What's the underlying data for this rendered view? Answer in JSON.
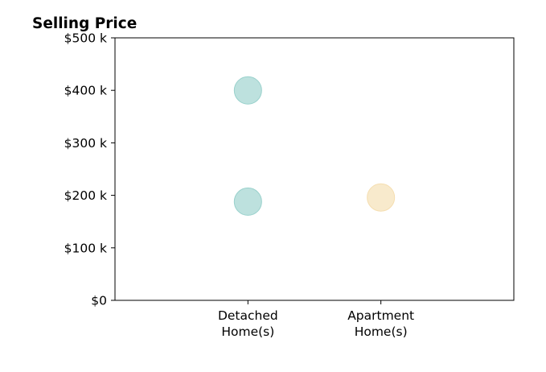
{
  "chart_data": {
    "type": "scatter",
    "title": "Selling Price",
    "xlabel": "",
    "ylabel": "",
    "categories": [
      [
        "Detached",
        "Home(s)"
      ],
      [
        "Apartment",
        "Home(s)"
      ]
    ],
    "x_slots": 3,
    "ylim": [
      0,
      500000
    ],
    "yticks": [
      {
        "value": 0,
        "label": "$0"
      },
      {
        "value": 100000,
        "label": "$100 k"
      },
      {
        "value": 200000,
        "label": "$200 k"
      },
      {
        "value": 300000,
        "label": "$300 k"
      },
      {
        "value": 400000,
        "label": "$400 k"
      },
      {
        "value": 500000,
        "label": "$500 k"
      }
    ],
    "points": [
      {
        "category": 0,
        "value": 400000,
        "color": "#99d1cc"
      },
      {
        "category": 0,
        "value": 188000,
        "color": "#99d1cc"
      },
      {
        "category": 1,
        "value": 196000,
        "color": "#f5deb0"
      }
    ],
    "grid": false,
    "legend": "none"
  }
}
